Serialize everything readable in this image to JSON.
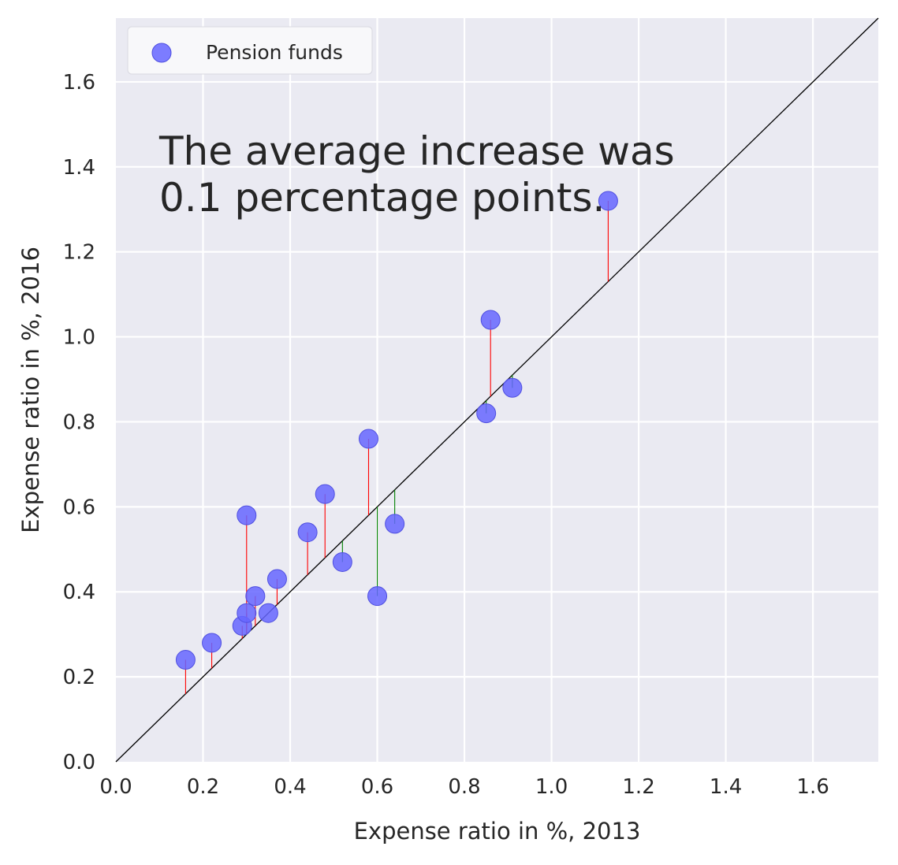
{
  "chart_data": {
    "type": "scatter",
    "xlabel": "Expense ratio in %, 2013",
    "ylabel": "Expense ratio in %, 2016",
    "xlim": [
      0,
      1.75
    ],
    "ylim": [
      0,
      1.75
    ],
    "xticks": [
      "0.0",
      "0.2",
      "0.4",
      "0.6",
      "0.8",
      "1.0",
      "1.2",
      "1.4",
      "1.6"
    ],
    "yticks": [
      "0.0",
      "0.2",
      "0.4",
      "0.6",
      "0.8",
      "1.0",
      "1.2",
      "1.4",
      "1.6"
    ],
    "grid": true,
    "legend_position": "top-left",
    "reference_line": "y = x",
    "annotation_lines": [
      "The average increase was",
      "0.1 percentage points."
    ],
    "colors": {
      "background": "#eaeaf2",
      "grid": "#ffffff",
      "point": "#6666ff",
      "increase": "#ff0000",
      "decrease": "#008000",
      "reference": "#000000"
    },
    "series": [
      {
        "name": "Pension funds",
        "points": [
          {
            "x": 0.16,
            "y": 0.24
          },
          {
            "x": 0.22,
            "y": 0.28
          },
          {
            "x": 0.29,
            "y": 0.32
          },
          {
            "x": 0.3,
            "y": 0.35
          },
          {
            "x": 0.3,
            "y": 0.58
          },
          {
            "x": 0.32,
            "y": 0.39
          },
          {
            "x": 0.35,
            "y": 0.35
          },
          {
            "x": 0.37,
            "y": 0.43
          },
          {
            "x": 0.44,
            "y": 0.54
          },
          {
            "x": 0.48,
            "y": 0.63
          },
          {
            "x": 0.52,
            "y": 0.47
          },
          {
            "x": 0.58,
            "y": 0.76
          },
          {
            "x": 0.6,
            "y": 0.39
          },
          {
            "x": 0.64,
            "y": 0.56
          },
          {
            "x": 0.85,
            "y": 0.82
          },
          {
            "x": 0.86,
            "y": 1.04
          },
          {
            "x": 0.91,
            "y": 0.88
          },
          {
            "x": 1.13,
            "y": 1.32
          }
        ]
      }
    ]
  }
}
